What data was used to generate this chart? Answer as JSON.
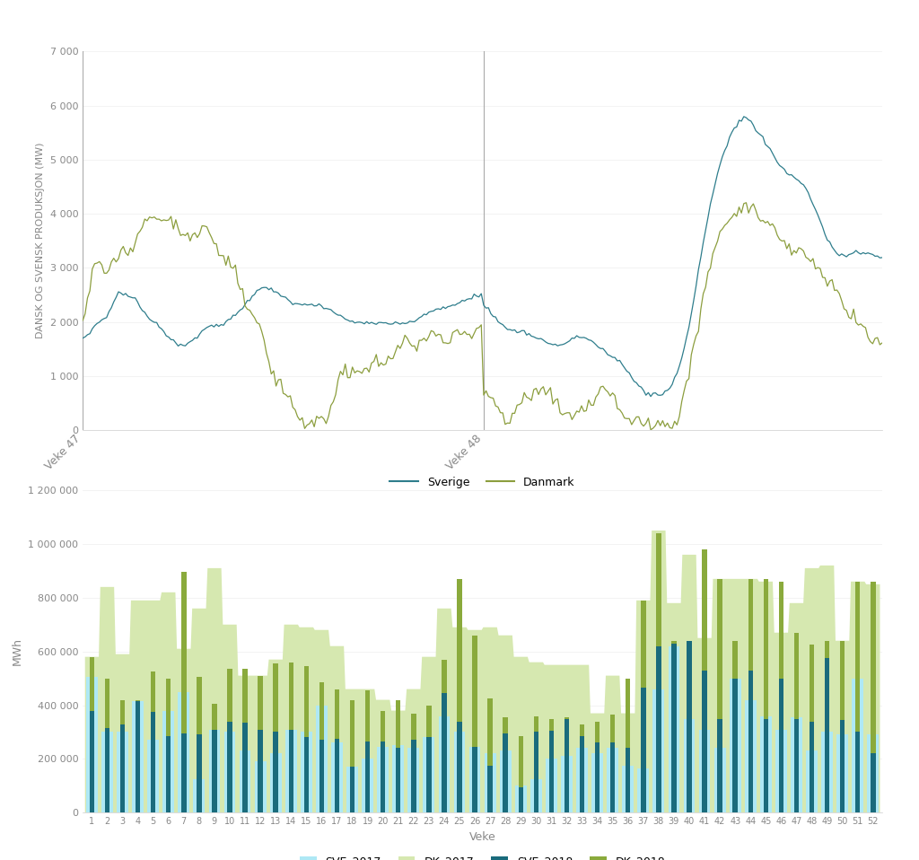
{
  "top_chart": {
    "ylabel": "DANSK OG SVENSK PRODUKSJON (MW)",
    "ylim": [
      0,
      7000
    ],
    "yticks": [
      0,
      1000,
      2000,
      3000,
      4000,
      5000,
      6000,
      7000
    ],
    "vline1_label": "Veke 47",
    "vline2_label": "Veke 48",
    "sverige_color": "#2e7d8c",
    "danmark_color": "#8c9e3e",
    "legend_sverige": "Sverige",
    "legend_danmark": "Danmark"
  },
  "bottom_chart": {
    "ylabel": "MWh",
    "xlabel": "Veke",
    "ylim": [
      0,
      1200000
    ],
    "yticks": [
      0,
      200000,
      400000,
      600000,
      800000,
      1000000,
      1200000
    ],
    "ytick_labels": [
      "0",
      "200 000",
      "400 000",
      "600 000",
      "800 000",
      "1 000 000",
      "1 200 000"
    ],
    "sve_2017_color": "#aee8f5",
    "dk_2017_color": "#d6e8b0",
    "sve_2018_color": "#1a6b7c",
    "dk_2018_color": "#8aaa3c",
    "weeks": [
      1,
      2,
      3,
      4,
      5,
      6,
      7,
      8,
      9,
      10,
      11,
      12,
      13,
      14,
      15,
      16,
      17,
      18,
      19,
      20,
      21,
      22,
      23,
      24,
      25,
      26,
      27,
      28,
      29,
      30,
      31,
      32,
      33,
      34,
      35,
      36,
      37,
      38,
      39,
      40,
      41,
      42,
      43,
      44,
      45,
      46,
      47,
      48,
      49,
      50,
      51,
      52
    ],
    "SVE_2017": [
      505000,
      300000,
      300000,
      415000,
      270000,
      380000,
      450000,
      125000,
      310000,
      300000,
      230000,
      190000,
      220000,
      310000,
      300000,
      400000,
      260000,
      170000,
      200000,
      245000,
      250000,
      240000,
      280000,
      360000,
      300000,
      245000,
      220000,
      230000,
      100000,
      125000,
      200000,
      210000,
      240000,
      220000,
      240000,
      175000,
      165000,
      460000,
      620000,
      350000,
      310000,
      240000,
      500000,
      420000,
      360000,
      310000,
      355000,
      230000,
      300000,
      290000,
      500000,
      290000
    ],
    "DK_2017": [
      580000,
      840000,
      590000,
      790000,
      790000,
      820000,
      610000,
      760000,
      910000,
      700000,
      510000,
      510000,
      570000,
      700000,
      690000,
      680000,
      620000,
      460000,
      460000,
      420000,
      380000,
      460000,
      580000,
      760000,
      690000,
      680000,
      690000,
      660000,
      580000,
      560000,
      550000,
      550000,
      550000,
      370000,
      510000,
      370000,
      790000,
      1050000,
      780000,
      960000,
      650000,
      870000,
      870000,
      870000,
      860000,
      670000,
      780000,
      910000,
      920000,
      640000,
      860000,
      850000
    ],
    "SVE_2018": [
      380000,
      315000,
      330000,
      415000,
      375000,
      285000,
      295000,
      290000,
      310000,
      340000,
      335000,
      310000,
      300000,
      310000,
      280000,
      270000,
      275000,
      170000,
      265000,
      265000,
      240000,
      270000,
      280000,
      445000,
      340000,
      245000,
      175000,
      295000,
      95000,
      300000,
      305000,
      350000,
      285000,
      260000,
      260000,
      240000,
      465000,
      620000,
      630000,
      640000,
      530000,
      350000,
      500000,
      530000,
      350000,
      500000,
      350000,
      340000,
      575000,
      345000,
      300000,
      220000
    ],
    "DK_2018": [
      200000,
      185000,
      90000,
      5000,
      150000,
      215000,
      600000,
      215000,
      95000,
      195000,
      200000,
      200000,
      255000,
      250000,
      265000,
      215000,
      185000,
      250000,
      190000,
      115000,
      180000,
      100000,
      120000,
      125000,
      530000,
      415000,
      250000,
      60000,
      190000,
      60000,
      45000,
      5000,
      45000,
      80000,
      105000,
      260000,
      325000,
      420000,
      10000,
      0,
      450000,
      520000,
      140000,
      340000,
      520000,
      360000,
      320000,
      285000,
      65000,
      295000,
      560000,
      640000
    ]
  },
  "background_color": "#ffffff"
}
